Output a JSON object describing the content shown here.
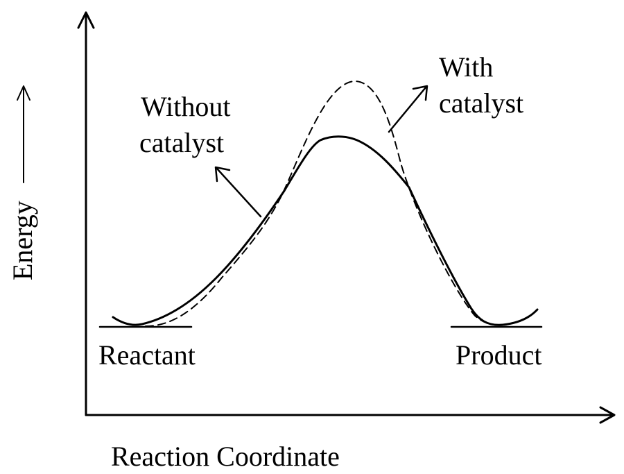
{
  "axes": {
    "y_label": "Energy",
    "x_label": "Reaction Coordinate"
  },
  "levels": {
    "reactant_label": "Reactant",
    "product_label": "Product"
  },
  "curves": {
    "without_catalyst": {
      "line1": "Without",
      "line2": "catalyst",
      "style": "solid"
    },
    "with_catalyst": {
      "line1": "With",
      "line2": "catalyst",
      "style": "dashed"
    }
  },
  "colors": {
    "ink": "#000000",
    "background": "#ffffff"
  }
}
